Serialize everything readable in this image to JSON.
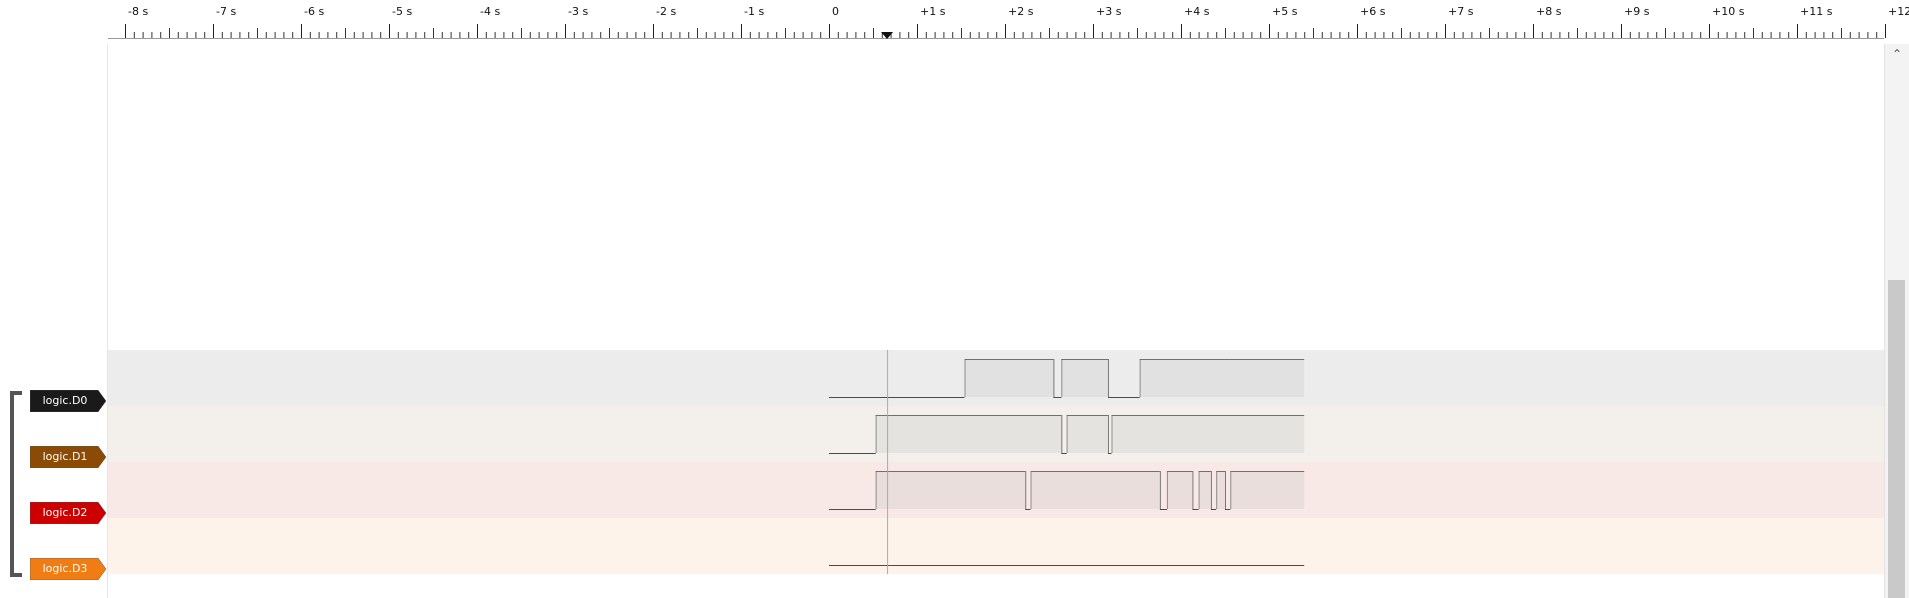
{
  "ruler": {
    "unit": "s",
    "ticks": [
      "-8 s",
      "-7 s",
      "-6 s",
      "-5 s",
      "-4 s",
      "-3 s",
      "-2 s",
      "-1 s",
      "0",
      "+1 s",
      "+2 s",
      "+3 s",
      "+4 s",
      "+5 s",
      "+6 s",
      "+7 s",
      "+8 s",
      "+9 s",
      "+10 s",
      "+11 s",
      "+12 s"
    ],
    "tick_values": [
      -8,
      -7,
      -6,
      -5,
      -4,
      -3,
      -2,
      -1,
      0,
      1,
      2,
      3,
      4,
      5,
      6,
      7,
      8,
      9,
      10,
      11,
      12
    ],
    "cursor_time": 0.66
  },
  "channels": [
    {
      "label": "logic.D0",
      "color": "#1a1a1a",
      "lane_bg": "#ececec",
      "transitions": [
        [
          0.0,
          0
        ],
        [
          1.54,
          1
        ],
        [
          2.55,
          0
        ],
        [
          2.64,
          1
        ],
        [
          3.17,
          0
        ],
        [
          3.53,
          1
        ],
        [
          4.55,
          1
        ],
        [
          5.4,
          1
        ]
      ]
    },
    {
      "label": "logic.D1",
      "color": "#8b4a05",
      "lane_bg": "#f3efea",
      "transitions": [
        [
          0.0,
          0
        ],
        [
          0.53,
          1
        ],
        [
          2.64,
          0
        ],
        [
          2.7,
          1
        ],
        [
          3.17,
          0
        ],
        [
          3.21,
          1
        ],
        [
          5.4,
          1
        ]
      ]
    },
    {
      "label": "logic.D2",
      "color": "#cc0000",
      "lane_bg": "#f8e8e6",
      "transitions": [
        [
          0.0,
          0
        ],
        [
          0.53,
          1
        ],
        [
          2.23,
          0
        ],
        [
          2.29,
          1
        ],
        [
          3.76,
          0
        ],
        [
          3.84,
          1
        ],
        [
          4.13,
          0
        ],
        [
          4.2,
          1
        ],
        [
          4.34,
          0
        ],
        [
          4.4,
          1
        ],
        [
          4.5,
          0
        ],
        [
          4.56,
          1
        ],
        [
          5.4,
          1
        ]
      ]
    },
    {
      "label": "logic.D3",
      "color": "#f07c14",
      "lane_bg": "#fdf3ea",
      "transitions": [
        [
          0.0,
          0
        ],
        [
          5.4,
          0
        ]
      ]
    }
  ],
  "colors": {
    "high": "#2e9e2e",
    "low": "#c01818",
    "high_fill": "#c8c8c8"
  },
  "icons": {
    "scroll_up": "chevron-up-icon",
    "cursor": "cursor-marker-icon"
  },
  "scrollbar": {
    "up_glyph": "⌃"
  }
}
